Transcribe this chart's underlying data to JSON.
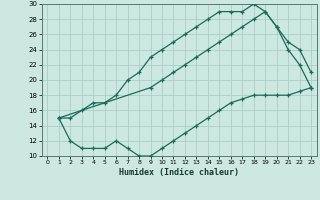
{
  "xlabel": "Humidex (Indice chaleur)",
  "bg_color": "#cce8e0",
  "line_color": "#1a6b5a",
  "grid_color": "#aacfc8",
  "xlim": [
    -0.5,
    23.5
  ],
  "ylim": [
    10,
    30
  ],
  "yticks": [
    10,
    12,
    14,
    16,
    18,
    20,
    22,
    24,
    26,
    28,
    30
  ],
  "xticks": [
    0,
    1,
    2,
    3,
    4,
    5,
    6,
    7,
    8,
    9,
    10,
    11,
    12,
    13,
    14,
    15,
    16,
    17,
    18,
    19,
    20,
    21,
    22,
    23
  ],
  "line1_x": [
    1,
    2,
    3,
    4,
    5,
    6,
    7,
    8,
    9,
    10,
    11,
    12,
    13,
    14,
    15,
    16,
    17,
    18,
    19,
    20,
    21,
    22,
    23
  ],
  "line1_y": [
    15,
    15,
    16,
    17,
    17,
    18,
    20,
    21,
    23,
    24,
    25,
    26,
    27,
    28,
    29,
    29,
    29,
    30,
    29,
    27,
    25,
    24,
    21
  ],
  "line2_x": [
    1,
    9,
    10,
    11,
    12,
    13,
    14,
    15,
    16,
    17,
    18,
    19,
    20,
    21,
    22,
    23
  ],
  "line2_y": [
    15,
    19,
    20,
    21,
    22,
    23,
    24,
    25,
    26,
    27,
    28,
    29,
    27,
    24,
    22,
    19
  ],
  "line3_x": [
    1,
    2,
    3,
    4,
    5,
    6,
    7,
    8,
    9,
    10,
    11,
    12,
    13,
    14,
    15,
    16,
    17,
    18,
    19,
    20,
    21,
    22,
    23
  ],
  "line3_y": [
    15,
    12,
    11,
    11,
    11,
    12,
    11,
    10,
    10,
    11,
    12,
    13,
    14,
    15,
    16,
    17,
    17.5,
    18,
    18,
    18,
    18,
    18.5,
    19
  ]
}
